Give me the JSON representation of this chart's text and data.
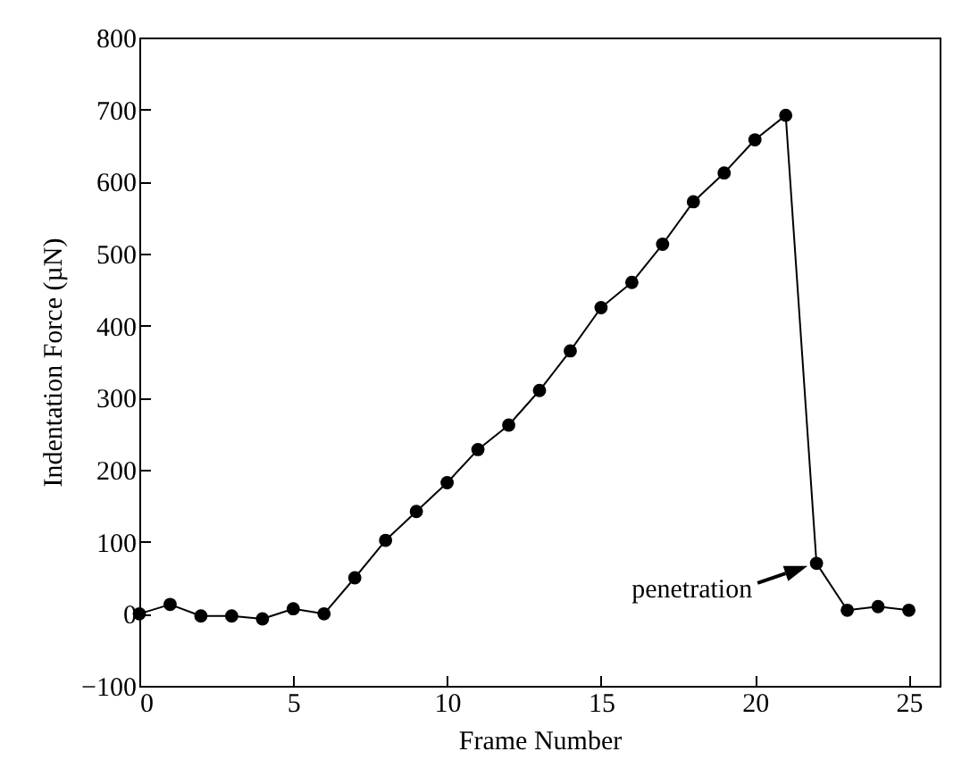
{
  "chart_data": {
    "type": "line",
    "xlabel": "Frame Number",
    "ylabel": "Indentation Force (µN)",
    "x": [
      0,
      1,
      2,
      3,
      4,
      5,
      6,
      7,
      8,
      9,
      10,
      11,
      12,
      13,
      14,
      15,
      16,
      17,
      18,
      19,
      20,
      21,
      22,
      23,
      24,
      25
    ],
    "series": [
      {
        "color": "#000000",
        "values": [
          0,
          13,
          -3,
          -3,
          -7,
          7,
          0,
          50,
          102,
          142,
          182,
          228,
          262,
          310,
          365,
          425,
          460,
          513,
          572,
          612,
          658,
          692,
          70,
          5,
          10,
          5
        ]
      }
    ],
    "xlim": [
      0,
      26
    ],
    "xticks": [
      0,
      5,
      10,
      15,
      20,
      25
    ],
    "ylim": [
      -100,
      800
    ],
    "yticks": [
      -100,
      0,
      100,
      200,
      300,
      400,
      500,
      600,
      700,
      800
    ],
    "grid": false,
    "marker": "circle",
    "line_style": "solid",
    "annotations": [
      {
        "text": "penetration",
        "x": 22,
        "y": 70
      }
    ]
  }
}
